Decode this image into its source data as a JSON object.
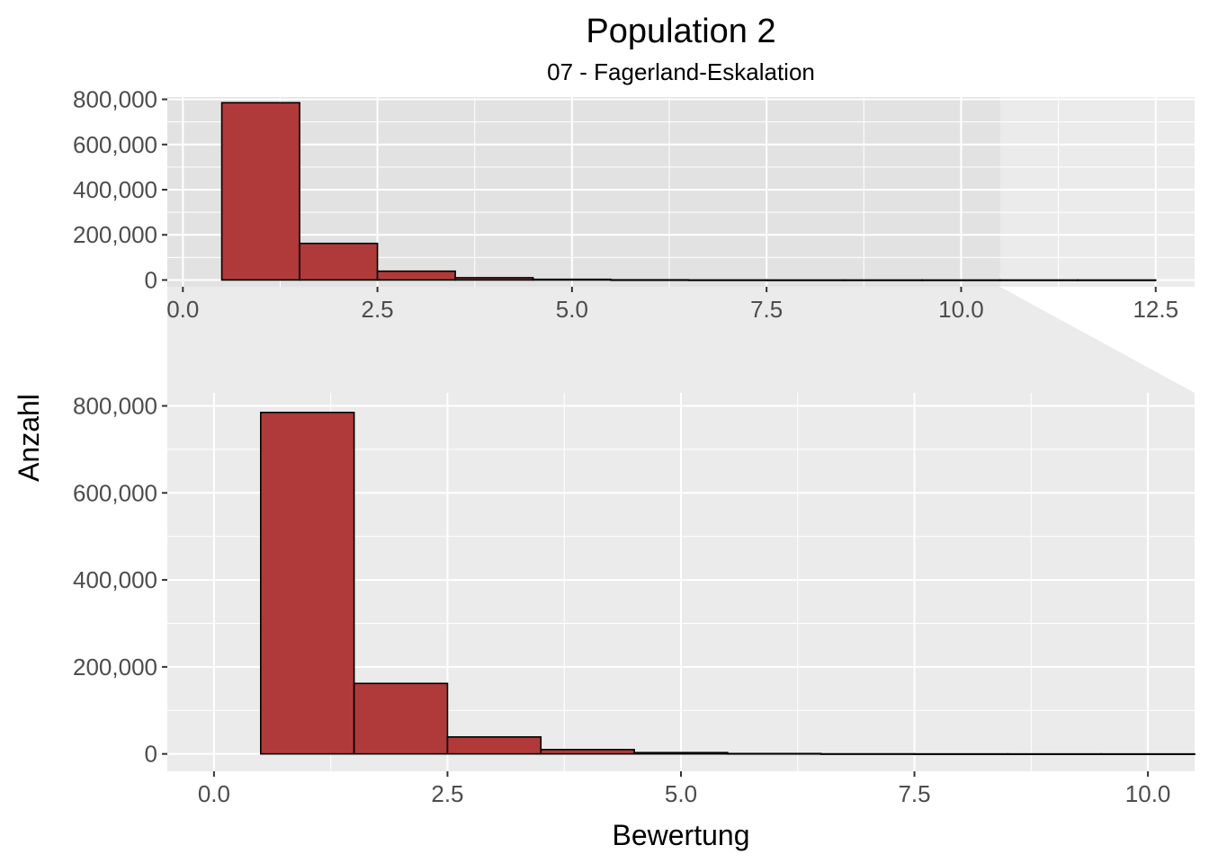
{
  "chart_data": {
    "type": "bar",
    "title": "Population 2",
    "subtitle": "07 - Fagerland-Eskalation",
    "xlabel": "Bewertung",
    "ylabel": "Anzahl",
    "bar_color": "#B03A3A",
    "bar_outline": "#000000",
    "panel_color": "#EBEBEB",
    "zoom_highlight_color": "#DADADA",
    "bin_width": 1,
    "bins": [
      {
        "center": 1,
        "count": 785000
      },
      {
        "center": 2,
        "count": 162000
      },
      {
        "center": 3,
        "count": 39000
      },
      {
        "center": 4,
        "count": 10000
      },
      {
        "center": 5,
        "count": 3000
      },
      {
        "center": 6,
        "count": 800
      },
      {
        "center": 7,
        "count": 200
      },
      {
        "center": 8,
        "count": 60
      },
      {
        "center": 9,
        "count": 20
      },
      {
        "center": 10,
        "count": 8
      },
      {
        "center": 11,
        "count": 3
      },
      {
        "center": 12,
        "count": 1
      }
    ],
    "overview": {
      "xlim": [
        -0.2,
        13.0
      ],
      "ylim": [
        -30000,
        810000
      ],
      "x_ticks": [
        0,
        2.5,
        5,
        7.5,
        10,
        12.5
      ],
      "x_tick_labels": [
        "0.0",
        "2.5",
        "5.0",
        "7.5",
        "10.0",
        "12.5"
      ],
      "y_ticks": [
        0,
        200000,
        400000,
        600000,
        800000
      ],
      "y_tick_labels": [
        "0",
        "200,000",
        "400,000",
        "600,000",
        "800,000"
      ],
      "zoom_range": [
        -0.5,
        10.5
      ]
    },
    "zoom": {
      "xlim": [
        -0.5,
        10.5
      ],
      "ylim": [
        -40000,
        830000
      ],
      "x_ticks": [
        0,
        2.5,
        5,
        7.5,
        10
      ],
      "x_tick_labels": [
        "0.0",
        "2.5",
        "5.0",
        "7.5",
        "10.0"
      ],
      "y_ticks": [
        0,
        200000,
        400000,
        600000,
        800000
      ],
      "y_tick_labels": [
        "0",
        "200,000",
        "400,000",
        "600,000",
        "800,000"
      ]
    }
  }
}
